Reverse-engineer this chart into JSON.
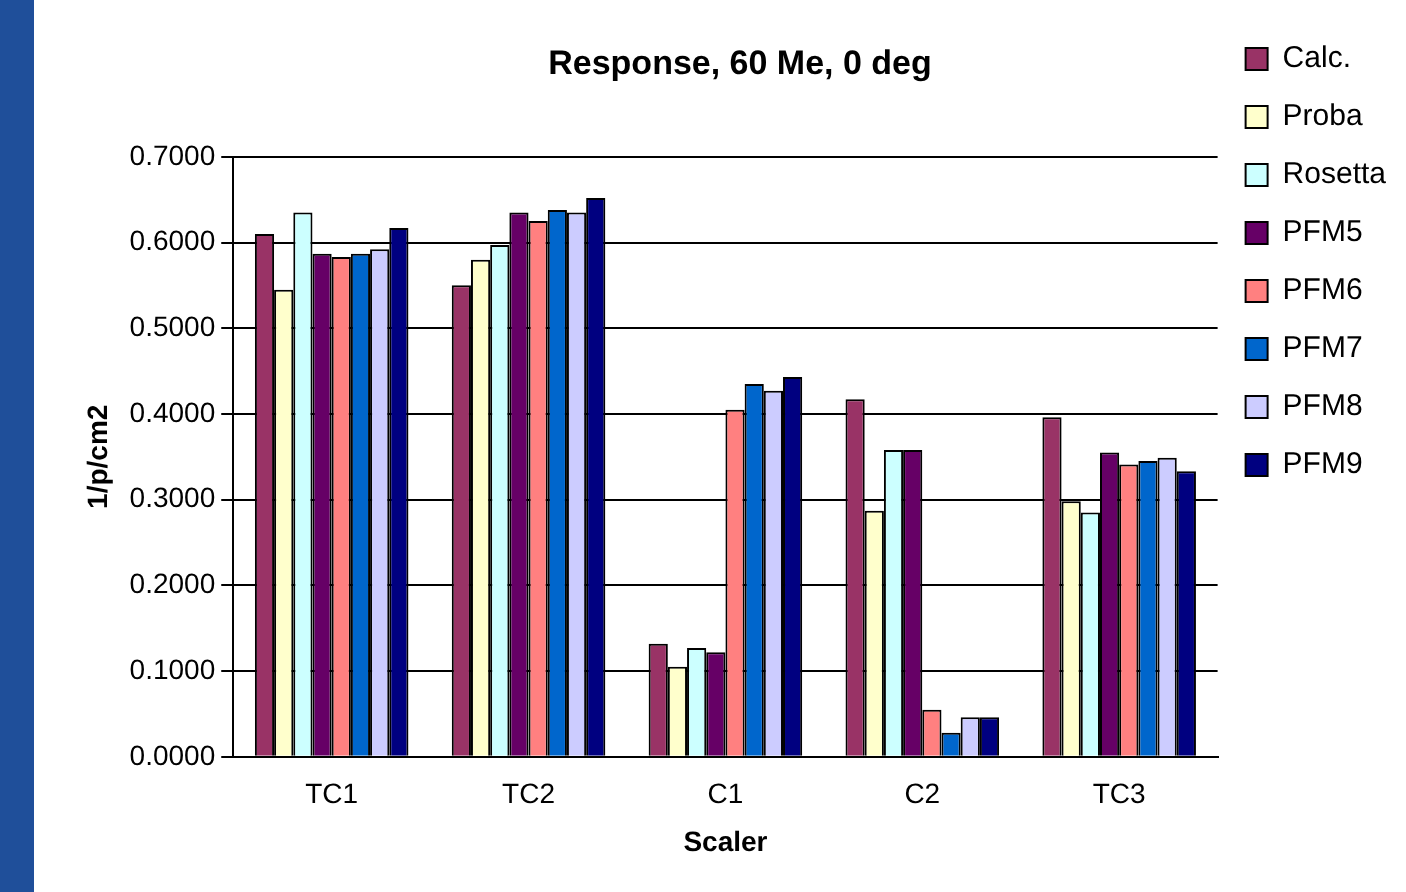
{
  "chart_data": {
    "type": "bar",
    "title": "Response, 60 Me, 0 deg",
    "xlabel": "Scaler",
    "ylabel": "1/p/cm2",
    "categories": [
      "TC1",
      "TC2",
      "C1",
      "C2",
      "TC3"
    ],
    "series": [
      {
        "name": "Calc.",
        "color": "#993366",
        "values": [
          0.61,
          0.55,
          0.132,
          0.417,
          0.396
        ]
      },
      {
        "name": "Proba",
        "color": "#ffffcc",
        "values": [
          0.545,
          0.58,
          0.105,
          0.287,
          0.298
        ]
      },
      {
        "name": "Rosetta",
        "color": "#ccffff",
        "values": [
          0.635,
          0.597,
          0.127,
          0.358,
          0.285
        ]
      },
      {
        "name": "PFM5",
        "color": "#660066",
        "values": [
          0.587,
          0.635,
          0.122,
          0.358,
          0.355
        ]
      },
      {
        "name": "PFM6",
        "color": "#ff8080",
        "values": [
          0.583,
          0.625,
          0.405,
          0.055,
          0.341
        ]
      },
      {
        "name": "PFM7",
        "color": "#0066cc",
        "values": [
          0.587,
          0.638,
          0.435,
          0.028,
          0.345
        ]
      },
      {
        "name": "PFM8",
        "color": "#ccccff",
        "values": [
          0.592,
          0.635,
          0.427,
          0.046,
          0.349
        ]
      },
      {
        "name": "PFM9",
        "color": "#000080",
        "values": [
          0.617,
          0.652,
          0.443,
          0.046,
          0.333
        ]
      }
    ],
    "ylim": [
      0,
      0.7
    ],
    "yticks": [
      {
        "value": 0,
        "label": "0.0000"
      },
      {
        "value": 0.1,
        "label": "0.1000"
      },
      {
        "value": 0.2,
        "label": "0.2000"
      },
      {
        "value": 0.3,
        "label": "0.3000"
      },
      {
        "value": 0.4,
        "label": "0.4000"
      },
      {
        "value": 0.5,
        "label": "0.5000"
      },
      {
        "value": 0.6,
        "label": "0.6000"
      },
      {
        "value": 0.7,
        "label": "0.7000"
      }
    ],
    "grid": "y",
    "legend": "right"
  }
}
